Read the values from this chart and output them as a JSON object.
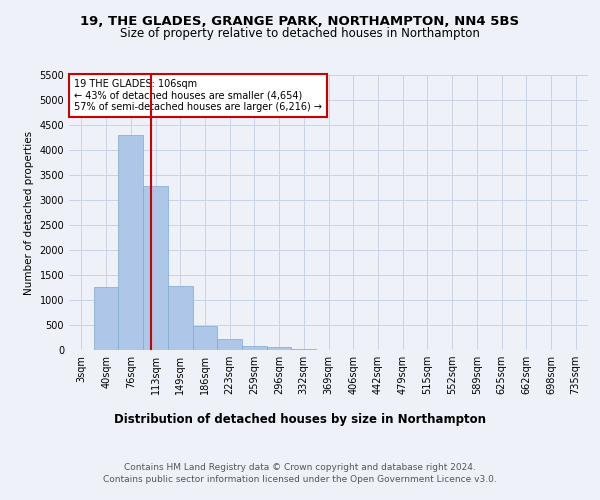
{
  "title1": "19, THE GLADES, GRANGE PARK, NORTHAMPTON, NN4 5BS",
  "title2": "Size of property relative to detached houses in Northampton",
  "xlabel": "Distribution of detached houses by size in Northampton",
  "ylabel": "Number of detached properties",
  "footer1": "Contains HM Land Registry data © Crown copyright and database right 2024.",
  "footer2": "Contains public sector information licensed under the Open Government Licence v3.0.",
  "annotation_title": "19 THE GLADES: 106sqm",
  "annotation_line1": "← 43% of detached houses are smaller (4,654)",
  "annotation_line2": "57% of semi-detached houses are larger (6,216) →",
  "bar_labels": [
    "3sqm",
    "40sqm",
    "76sqm",
    "113sqm",
    "149sqm",
    "186sqm",
    "223sqm",
    "259sqm",
    "296sqm",
    "332sqm",
    "369sqm",
    "406sqm",
    "442sqm",
    "479sqm",
    "515sqm",
    "552sqm",
    "589sqm",
    "625sqm",
    "662sqm",
    "698sqm",
    "735sqm"
  ],
  "bar_values": [
    0,
    1270,
    4300,
    3280,
    1280,
    490,
    230,
    90,
    65,
    30,
    0,
    0,
    0,
    0,
    0,
    0,
    0,
    0,
    0,
    0,
    0
  ],
  "bar_color": "#aec6e8",
  "bar_edge_color": "#7eaad0",
  "vline_color": "#cc0000",
  "ylim_max": 5500,
  "yticks": [
    0,
    500,
    1000,
    1500,
    2000,
    2500,
    3000,
    3500,
    4000,
    4500,
    5000,
    5500
  ],
  "background_color": "#eef2f8",
  "plot_background": "#eef2f8",
  "grid_color": "#c8d4e8",
  "annotation_box_edge": "#cc0000",
  "title1_fontsize": 9.5,
  "title2_fontsize": 8.5,
  "xlabel_fontsize": 8.5,
  "ylabel_fontsize": 7.5,
  "tick_fontsize": 7,
  "ann_fontsize": 7,
  "footer_fontsize": 6.5,
  "footer_color": "#555555"
}
